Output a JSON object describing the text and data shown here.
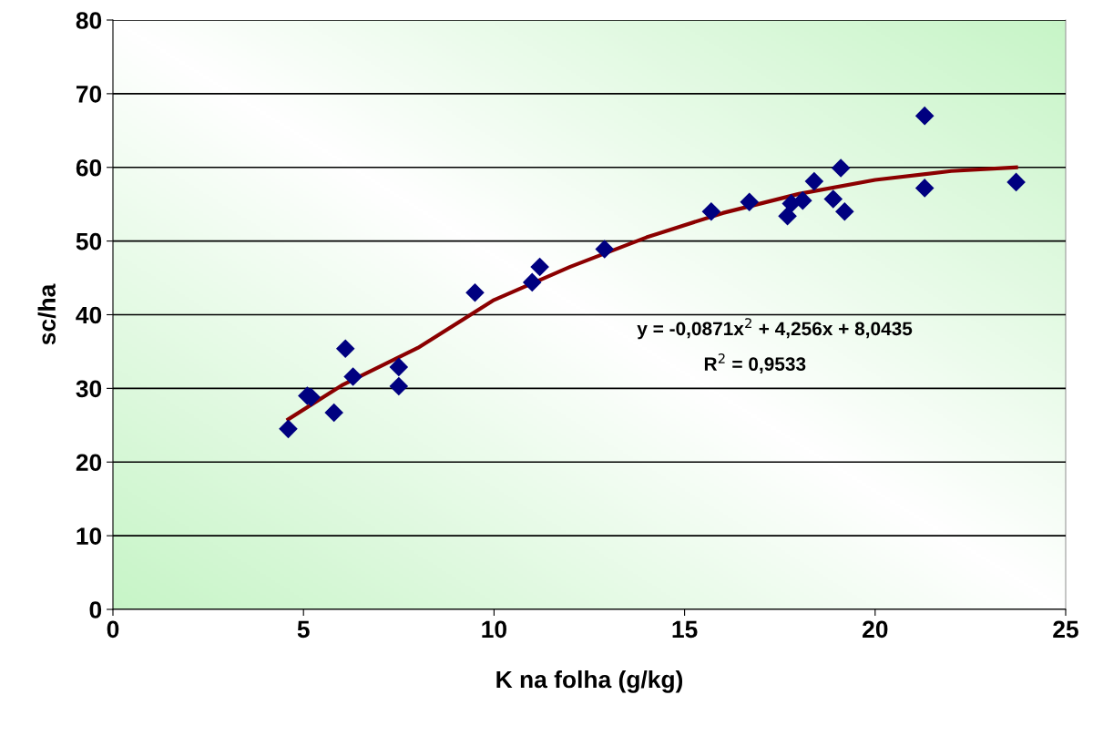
{
  "chart_data": {
    "type": "scatter",
    "xlabel": "K na folha (g/kg)",
    "ylabel": "sc/ha",
    "xlim": [
      0,
      25
    ],
    "xticks": [
      0,
      5,
      10,
      15,
      20,
      25
    ],
    "ylim": [
      0,
      80
    ],
    "yticks": [
      0,
      10,
      20,
      30,
      40,
      50,
      60,
      70,
      80
    ],
    "grid": "y",
    "series": [
      {
        "marker": "diamond",
        "color": "#000080",
        "x": [
          4.6,
          5.1,
          5.2,
          5.8,
          6.1,
          6.3,
          7.5,
          7.5,
          9.5,
          11.0,
          11.2,
          12.9,
          15.7,
          16.7,
          17.7,
          17.8,
          18.1,
          18.4,
          18.9,
          19.1,
          19.2,
          21.3,
          21.3,
          23.7
        ],
        "values": [
          24.5,
          29.0,
          28.8,
          26.7,
          35.4,
          31.6,
          32.9,
          30.3,
          43.0,
          44.4,
          46.5,
          48.9,
          54.0,
          55.3,
          53.4,
          55.1,
          55.5,
          58.1,
          55.7,
          59.9,
          54.0,
          67.0,
          57.2,
          58.0
        ]
      },
      {
        "type": "line",
        "marker": "none",
        "color": "#8b0000",
        "x": [
          4.6,
          6,
          8,
          10,
          12,
          14,
          16,
          18,
          20,
          22,
          23.7
        ],
        "values": [
          25.8,
          30.4,
          35.5,
          42.0,
          46.5,
          50.5,
          53.8,
          56.4,
          58.3,
          59.5,
          60.0
        ]
      }
    ],
    "annotations": [
      "y = -0,0871x$^{2}$ + 4,256x + 8,0435",
      "R$^{2}$ = 0,9533"
    ]
  }
}
